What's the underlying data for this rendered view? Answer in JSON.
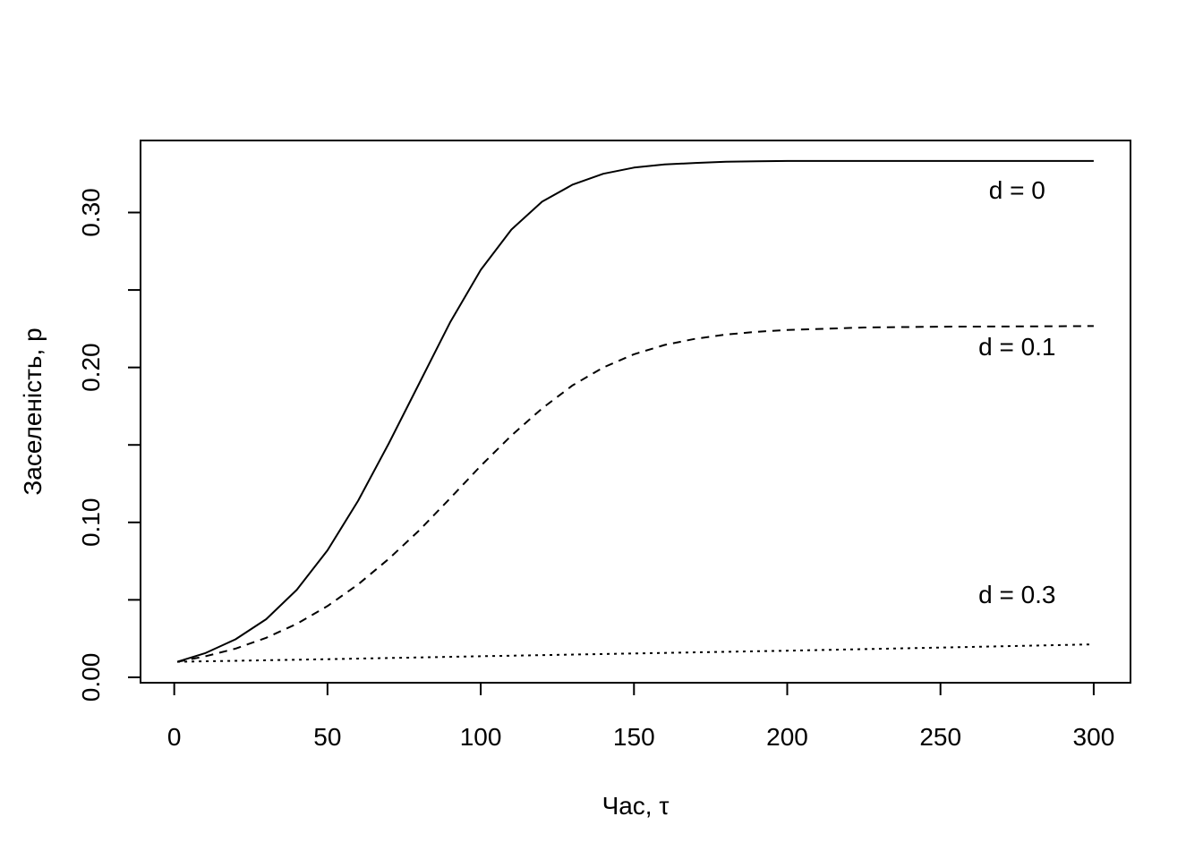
{
  "chart_data": {
    "type": "line",
    "xlabel": "Час, τ",
    "ylabel": "Заселеність, p",
    "xlim": [
      -11,
      312
    ],
    "ylim": [
      -0.0035,
      0.3465
    ],
    "x_ticks": [
      0,
      50,
      100,
      150,
      200,
      250,
      300
    ],
    "x_tick_labels": [
      "0",
      "50",
      "100",
      "150",
      "200",
      "250",
      "300"
    ],
    "y_ticks": [
      0.0,
      0.05,
      0.1,
      0.15,
      0.2,
      0.25,
      0.3
    ],
    "y_tick_labels": [
      "0.00",
      "",
      "0.10",
      "",
      "0.20",
      "",
      "0.30"
    ],
    "grid": false,
    "legend": "none",
    "series": [
      {
        "label": "d = 0",
        "line_style": "solid",
        "x": [
          1,
          10,
          20,
          30,
          40,
          50,
          60,
          70,
          80,
          90,
          100,
          110,
          120,
          130,
          140,
          150,
          160,
          170,
          180,
          190,
          200,
          225,
          250,
          275,
          300
        ],
        "y": [
          0.01,
          0.0155,
          0.0245,
          0.0375,
          0.0565,
          0.082,
          0.114,
          0.151,
          0.19,
          0.229,
          0.263,
          0.289,
          0.307,
          0.318,
          0.325,
          0.329,
          0.331,
          0.332,
          0.3328,
          0.3331,
          0.3333,
          0.3333,
          0.3333,
          0.3333,
          0.3333
        ]
      },
      {
        "label": "d = 0.1",
        "line_style": "dashed",
        "x": [
          1,
          10,
          20,
          30,
          40,
          50,
          60,
          70,
          80,
          90,
          100,
          110,
          120,
          130,
          140,
          150,
          160,
          170,
          180,
          190,
          200,
          225,
          250,
          275,
          300
        ],
        "y": [
          0.01,
          0.0135,
          0.0185,
          0.0255,
          0.0345,
          0.046,
          0.06,
          0.0765,
          0.095,
          0.1155,
          0.1365,
          0.156,
          0.1735,
          0.1885,
          0.2,
          0.2085,
          0.2145,
          0.2185,
          0.2212,
          0.223,
          0.2242,
          0.2258,
          0.2263,
          0.2265,
          0.2267
        ]
      },
      {
        "label": "d = 0.3",
        "line_style": "dotted",
        "x": [
          1,
          50,
          100,
          150,
          200,
          250,
          300
        ],
        "y": [
          0.01,
          0.0117,
          0.0136,
          0.0154,
          0.0172,
          0.0192,
          0.0213
        ]
      }
    ],
    "annotations": [
      {
        "text": "d = 0",
        "x": 275,
        "y": 0.309
      },
      {
        "text": "d = 0.1",
        "x": 275,
        "y": 0.208
      },
      {
        "text": "d = 0.3",
        "x": 275,
        "y": 0.048
      }
    ]
  }
}
